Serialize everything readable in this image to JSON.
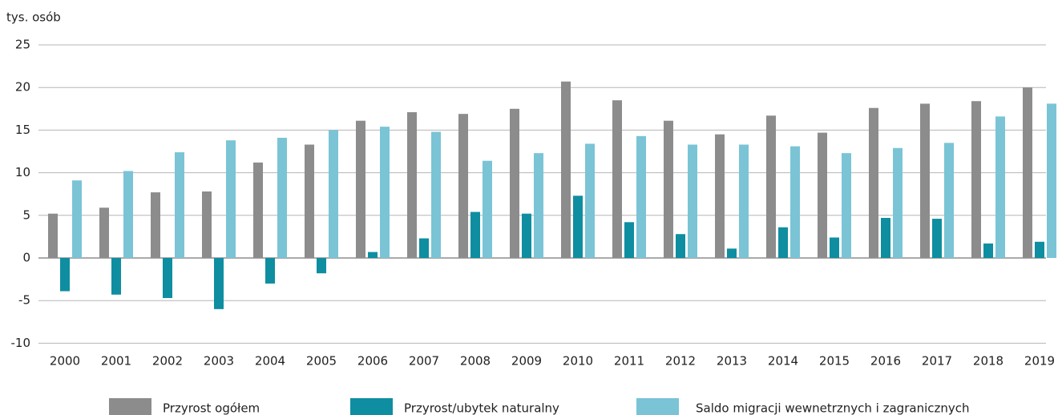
{
  "chart_data": {
    "type": "bar",
    "y_label": "tys. osób",
    "categories": [
      "2000",
      "2001",
      "2002",
      "2003",
      "2004",
      "2005",
      "2006",
      "2007",
      "2008",
      "2009",
      "2010",
      "2011",
      "2012",
      "2013",
      "2014",
      "2015",
      "2016",
      "2017",
      "2018",
      "2019"
    ],
    "series": [
      {
        "name": "Przyrost ogółem",
        "color": "#8c8c8c",
        "values": [
          5.2,
          5.9,
          7.7,
          7.8,
          11.2,
          13.3,
          16.1,
          17.1,
          16.9,
          17.5,
          20.7,
          18.5,
          16.1,
          14.5,
          16.7,
          14.7,
          17.6,
          18.1,
          18.4,
          20.0
        ]
      },
      {
        "name": "Przyrost/ubytek naturalny",
        "color": "#0e8ea0",
        "values": [
          -3.9,
          -4.3,
          -4.7,
          -6.0,
          -3.0,
          -1.8,
          0.7,
          2.3,
          5.4,
          5.2,
          7.3,
          4.2,
          2.8,
          1.1,
          3.6,
          2.4,
          4.7,
          4.6,
          1.7,
          1.9
        ]
      },
      {
        "name": "Saldo migracji wewnetrznych i zagranicznych",
        "color": "#7ac4d6",
        "values": [
          9.1,
          10.2,
          12.4,
          13.8,
          14.1,
          15.0,
          15.4,
          14.8,
          11.4,
          12.3,
          13.4,
          14.3,
          13.3,
          13.3,
          13.1,
          12.3,
          12.9,
          13.5,
          16.6,
          18.1
        ]
      }
    ],
    "ylim": [
      -10,
      25
    ],
    "yticks": [
      -10,
      -5,
      0,
      5,
      10,
      15,
      20,
      25
    ],
    "grid": true,
    "legend": "bottom"
  }
}
